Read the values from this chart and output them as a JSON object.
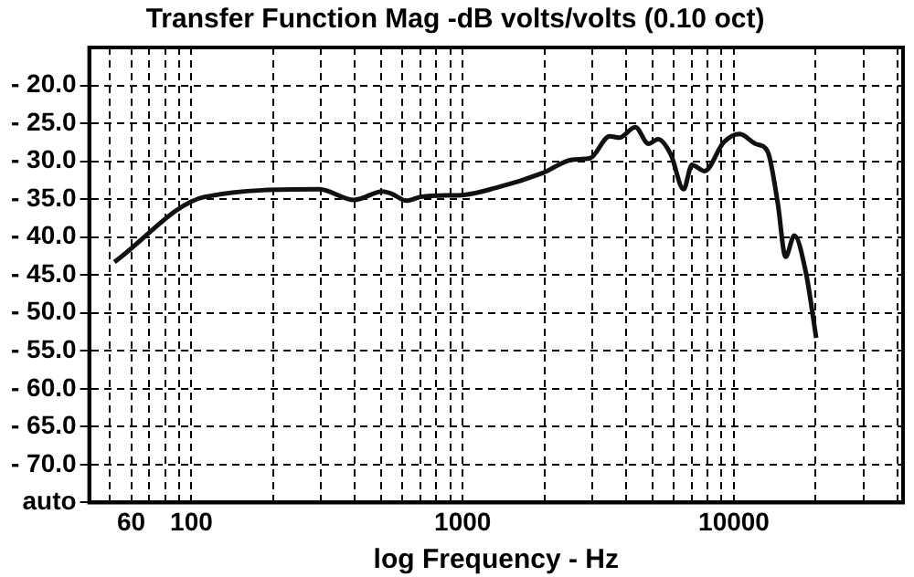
{
  "chart_data": {
    "type": "line",
    "title": "Transfer Function Mag -dB volts/volts (0.10 oct)",
    "xlabel": "log Frequency - Hz",
    "x": [
      52,
      112,
      296,
      398,
      506,
      548,
      620,
      700,
      866,
      963,
      1330,
      1987,
      2530,
      2950,
      3480,
      3780,
      4330,
      4840,
      5250,
      5850,
      6520,
      7000,
      7790,
      9170,
      10500,
      12000,
      13300,
      14500,
      15500,
      16700,
      18400,
      20100
    ],
    "values": [
      -43.3,
      -34.7,
      -33.7,
      -35.1,
      -34.0,
      -34.3,
      -35.2,
      -34.7,
      -34.5,
      -34.5,
      -33.5,
      -31.5,
      -29.8,
      -29.6,
      -26.7,
      -26.9,
      -25.5,
      -27.7,
      -27.1,
      -29.1,
      -33.7,
      -30.5,
      -31.3,
      -27.5,
      -26.4,
      -27.7,
      -28.7,
      -35.5,
      -42.6,
      -39.8,
      -44.6,
      -53.3
    ],
    "color": "#111111",
    "xlim": [
      42,
      42000
    ],
    "ylim": [
      -75,
      -15
    ],
    "xticks": [
      {
        "value": 50,
        "label": null
      },
      {
        "value": 60,
        "label": "60"
      },
      {
        "value": 70,
        "label": null
      },
      {
        "value": 80,
        "label": null
      },
      {
        "value": 90,
        "label": null
      },
      {
        "value": 100,
        "label": "100"
      },
      {
        "value": 200,
        "label": null
      },
      {
        "value": 300,
        "label": null
      },
      {
        "value": 400,
        "label": null
      },
      {
        "value": 500,
        "label": null
      },
      {
        "value": 600,
        "label": null
      },
      {
        "value": 700,
        "label": null
      },
      {
        "value": 800,
        "label": null
      },
      {
        "value": 900,
        "label": null
      },
      {
        "value": 1000,
        "label": "1000"
      },
      {
        "value": 2000,
        "label": null
      },
      {
        "value": 3000,
        "label": null
      },
      {
        "value": 4000,
        "label": null
      },
      {
        "value": 5000,
        "label": null
      },
      {
        "value": 6000,
        "label": null
      },
      {
        "value": 7000,
        "label": null
      },
      {
        "value": 8000,
        "label": null
      },
      {
        "value": 9000,
        "label": null
      },
      {
        "value": 10000,
        "label": "10000"
      },
      {
        "value": 20000,
        "label": null
      },
      {
        "value": 30000,
        "label": null
      },
      {
        "value": 40000,
        "label": null
      }
    ],
    "yticks": [
      {
        "value": -20,
        "label": "- 20.0"
      },
      {
        "value": -25,
        "label": "- 25.0"
      },
      {
        "value": -30,
        "label": "- 30.0"
      },
      {
        "value": -35,
        "label": "- 35.0"
      },
      {
        "value": -40,
        "label": "- 40.0"
      },
      {
        "value": -45,
        "label": "- 45.0"
      },
      {
        "value": -50,
        "label": "- 50.0"
      },
      {
        "value": -55,
        "label": "- 55.0"
      },
      {
        "value": -60,
        "label": "- 60.0"
      },
      {
        "value": -65,
        "label": "- 65.0"
      },
      {
        "value": -70,
        "label": "- 70.0"
      },
      {
        "value": -75,
        "label": "auto"
      }
    ],
    "log": "x",
    "grid": true,
    "legend": false
  }
}
